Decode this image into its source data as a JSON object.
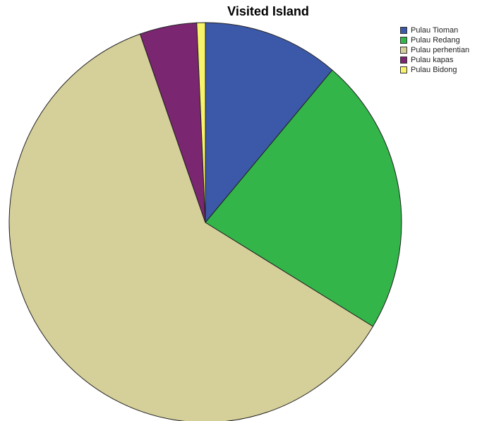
{
  "chart_data": {
    "type": "pie",
    "title": "Visited Island",
    "categories": [
      "Pulau Tioman",
      "Pulau Redang",
      "Pulau perhentian",
      "Pulau kapas",
      "Pulau Bidong"
    ],
    "values": [
      11.2,
      22.5,
      60.9,
      4.7,
      0.7
    ],
    "unit": "%",
    "colors": [
      "#3c58a8",
      "#33b54a",
      "#d5cf9a",
      "#7a2670",
      "#f7f36a"
    ],
    "start_angle_deg": 0,
    "direction": "clockwise",
    "legend_position": "top-right"
  }
}
